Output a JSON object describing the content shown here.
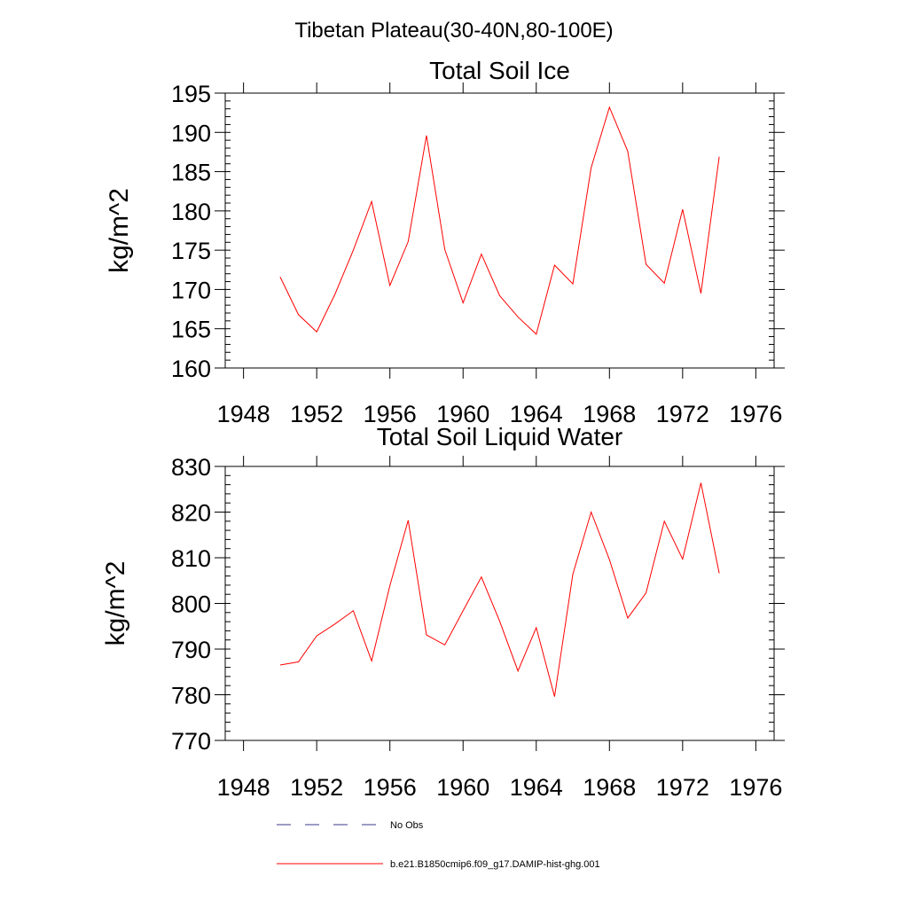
{
  "figure": {
    "suptitle": "Tibetan Plateau(30-40N,80-100E)"
  },
  "legend": {
    "entries": [
      {
        "label": "No Obs",
        "color": "#3a3a8c",
        "style": "dashed"
      },
      {
        "label": "b.e21.B1850cmip6.f09_g17.DAMIP-hist-ghg.001",
        "color": "#ff0000",
        "style": "solid"
      }
    ]
  },
  "chart_data": [
    {
      "type": "line",
      "title": "Total Soil Ice",
      "ylabel": "kg/m^2",
      "xlim": [
        1947,
        1977
      ],
      "ylim": [
        160,
        195
      ],
      "xticks": [
        1948,
        1952,
        1956,
        1960,
        1964,
        1968,
        1972,
        1976
      ],
      "yticks": [
        160,
        165,
        170,
        175,
        180,
        185,
        190,
        195
      ],
      "series": [
        {
          "color": "#ff0000",
          "x": [
            1950,
            1951,
            1952,
            1953,
            1954,
            1955,
            1956,
            1957,
            1958,
            1959,
            1960,
            1961,
            1962,
            1963,
            1964,
            1965,
            1966,
            1967,
            1968,
            1969,
            1970,
            1971,
            1972,
            1973,
            1974
          ],
          "values": [
            171.6,
            166.8,
            164.6,
            169.4,
            175.0,
            181.2,
            170.5,
            176.1,
            189.6,
            175.1,
            168.3,
            174.5,
            169.2,
            166.5,
            164.3,
            173.1,
            170.7,
            185.5,
            193.2,
            187.6,
            173.2,
            170.8,
            180.2,
            169.5,
            186.9
          ]
        }
      ]
    },
    {
      "type": "line",
      "title": "Total Soil Liquid Water",
      "ylabel": "kg/m^2",
      "xlim": [
        1947,
        1977
      ],
      "ylim": [
        770,
        830
      ],
      "xticks": [
        1948,
        1952,
        1956,
        1960,
        1964,
        1968,
        1972,
        1976
      ],
      "yticks": [
        770,
        780,
        790,
        800,
        810,
        820,
        830
      ],
      "series": [
        {
          "color": "#ff0000",
          "x": [
            1950,
            1951,
            1952,
            1953,
            1954,
            1955,
            1956,
            1957,
            1958,
            1959,
            1960,
            1961,
            1962,
            1963,
            1964,
            1965,
            1966,
            1967,
            1968,
            1969,
            1970,
            1971,
            1972,
            1973,
            1974
          ],
          "values": [
            786.5,
            787.2,
            792.9,
            795.5,
            798.4,
            787.4,
            803.9,
            818.2,
            793.1,
            790.9,
            798.4,
            805.8,
            796.1,
            785.2,
            794.7,
            779.6,
            806.4,
            820.0,
            809.6,
            796.8,
            802.3,
            818.0,
            809.7,
            826.4,
            806.6
          ]
        }
      ]
    }
  ]
}
